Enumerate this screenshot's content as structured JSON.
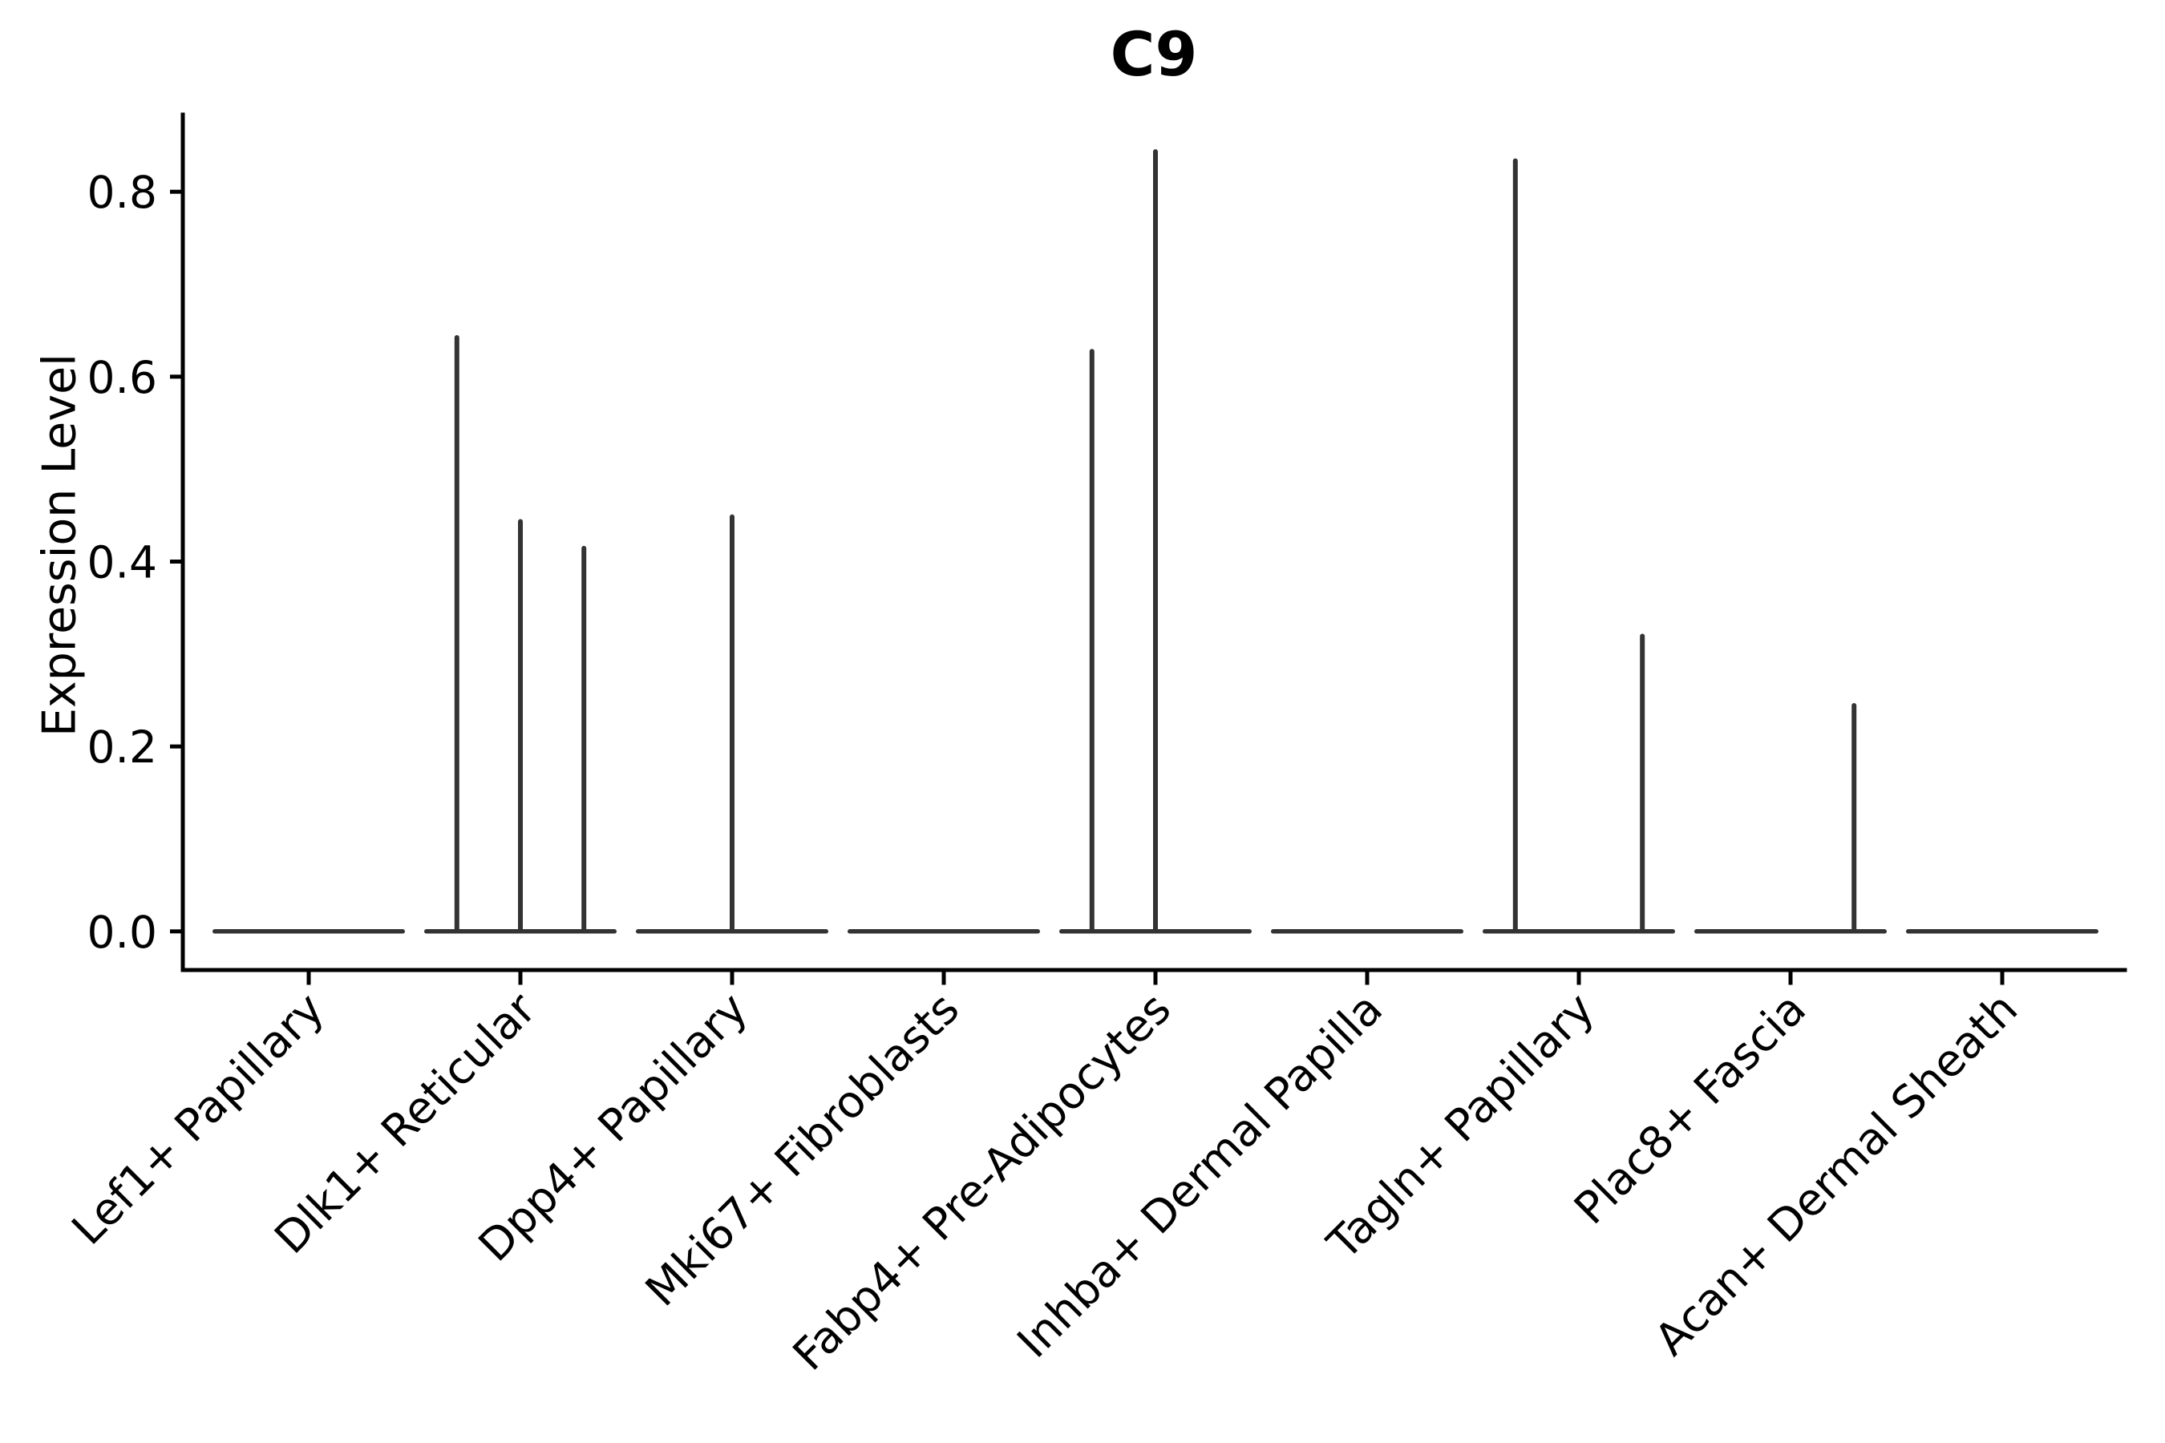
{
  "figure": {
    "background": "#ffffff"
  },
  "chart_data": {
    "type": "violin",
    "title": "C9",
    "xlabel": "",
    "ylabel": "Expression Level",
    "categories": [
      "Lef1+ Papillary",
      "Dlk1+ Reticular",
      "Dpp4+ Papillary",
      "Mki67+ Fibroblasts",
      "Fabp4+ Pre-Adipocytes",
      "Inhba+ Dermal Papilla",
      "Tagln+ Papillary",
      "Plac8+ Fascia",
      "Acan+ Dermal Sheath"
    ],
    "y_tick_labels": [
      "0.0",
      "0.2",
      "0.4",
      "0.6",
      "0.8"
    ],
    "y_tick_values": [
      0.0,
      0.2,
      0.4,
      0.6,
      0.8
    ],
    "ylim": [
      -0.042,
      0.883
    ],
    "grid": false,
    "legend": "none",
    "x_label_rotation_deg": 45,
    "description": "Violin plot of C9 expression; all violins are flattened at 0 with thin density spikes for rare expressing cells",
    "violins": [
      {
        "category": "Lef1+ Papillary",
        "baseline": 0.0,
        "spikes": []
      },
      {
        "category": "Dlk1+ Reticular",
        "baseline": 0.0,
        "spikes": [
          {
            "value": 0.645,
            "offset": -0.3
          },
          {
            "value": 0.446,
            "offset": 0.0
          },
          {
            "value": 0.417,
            "offset": 0.3
          }
        ]
      },
      {
        "category": "Dpp4+ Papillary",
        "baseline": 0.0,
        "spikes": [
          {
            "value": 0.451,
            "offset": 0.0
          }
        ]
      },
      {
        "category": "Mki67+ Fibroblasts",
        "baseline": 0.0,
        "spikes": []
      },
      {
        "category": "Fabp4+ Pre-Adipocytes",
        "baseline": 0.0,
        "spikes": [
          {
            "value": 0.63,
            "offset": -0.3
          },
          {
            "value": 0.846,
            "offset": 0.0
          }
        ]
      },
      {
        "category": "Inhba+ Dermal Papilla",
        "baseline": 0.0,
        "spikes": []
      },
      {
        "category": "Tagln+ Papillary",
        "baseline": 0.0,
        "spikes": [
          {
            "value": 0.836,
            "offset": -0.3
          },
          {
            "value": 0.322,
            "offset": 0.3
          }
        ]
      },
      {
        "category": "Plac8+ Fascia",
        "baseline": 0.0,
        "spikes": [
          {
            "value": 0.247,
            "offset": 0.3
          }
        ]
      },
      {
        "category": "Acan+ Dermal Sheath",
        "baseline": 0.0,
        "spikes": []
      }
    ],
    "colors": {
      "violin_stroke": "#333333",
      "axis": "#000000",
      "text": "#000000",
      "background": "#ffffff"
    }
  }
}
